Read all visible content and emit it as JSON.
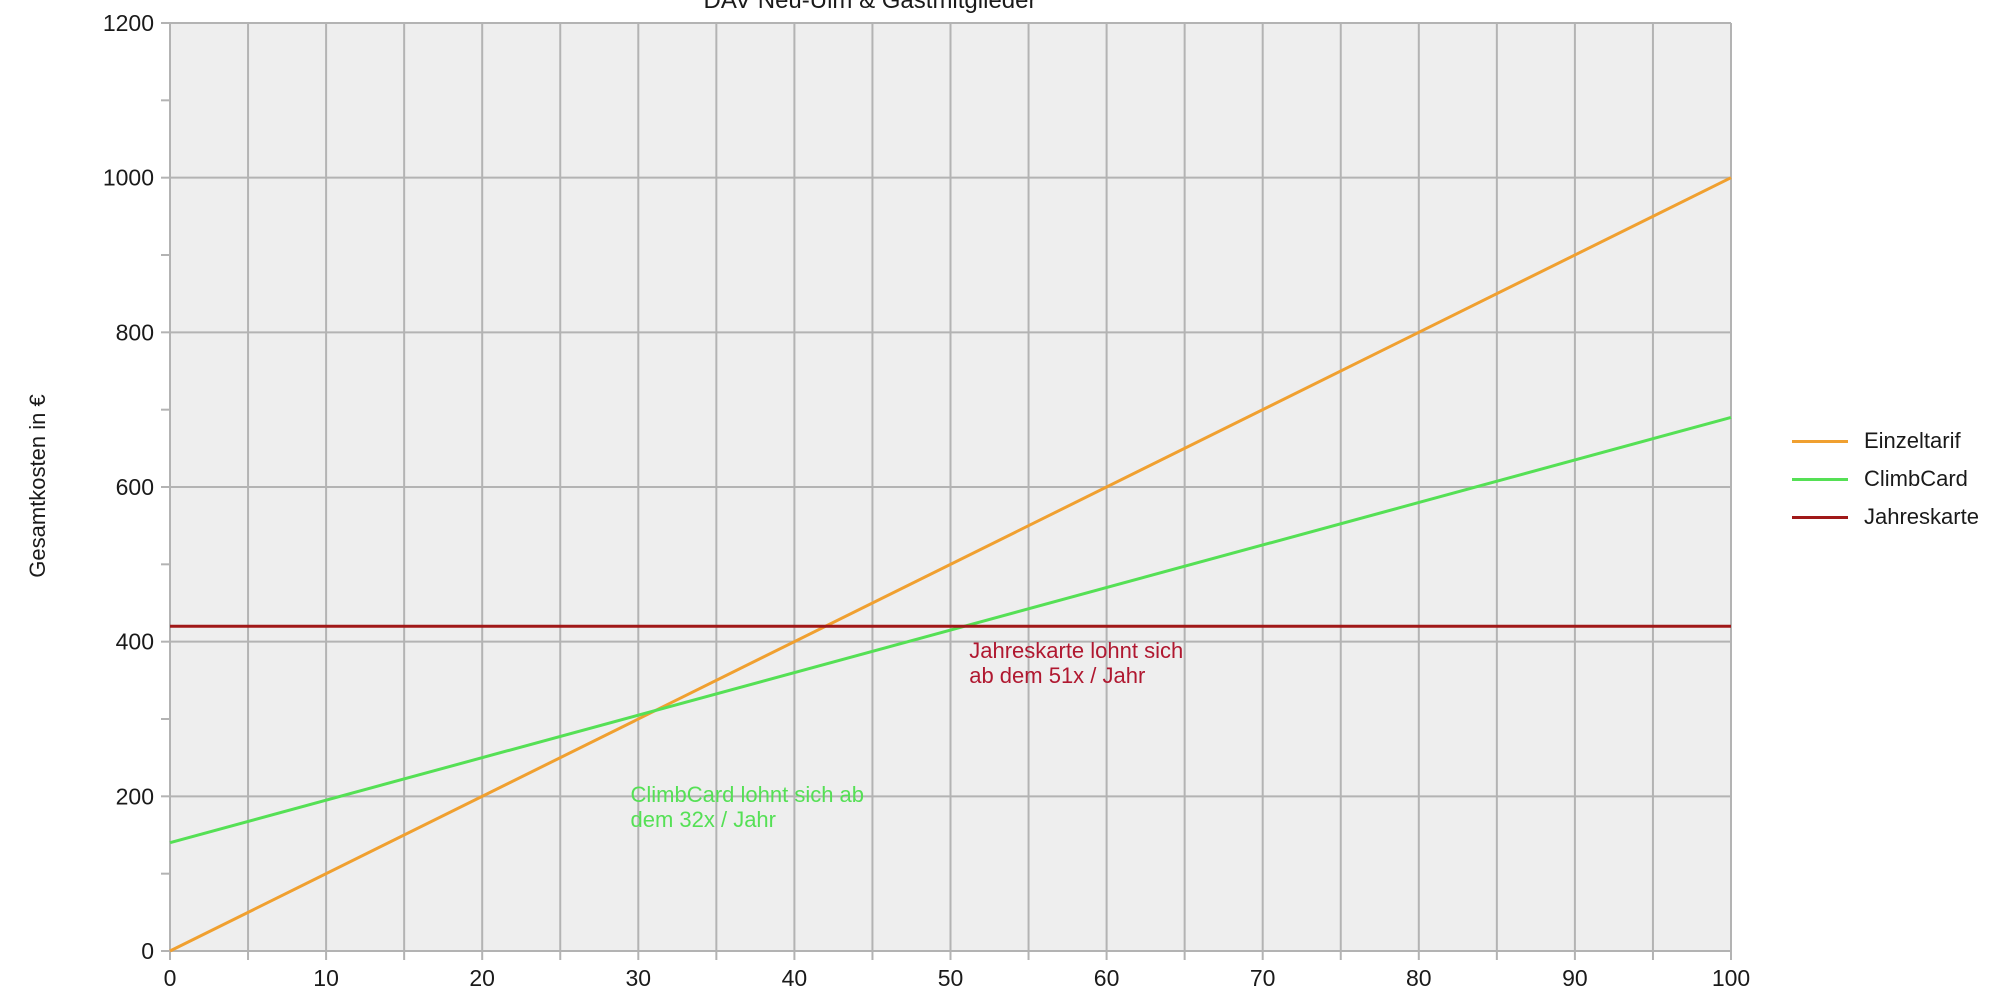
{
  "chart_data": {
    "type": "line",
    "title": "DAV Neu-Ulm & Gastmitglieder",
    "xlabel": "",
    "ylabel": "Gesamtkosten in €",
    "xlim": [
      0,
      100
    ],
    "ylim": [
      0,
      1200
    ],
    "x_ticks": [
      0,
      10,
      20,
      30,
      40,
      50,
      60,
      70,
      80,
      90,
      100
    ],
    "y_ticks": [
      0,
      200,
      400,
      600,
      800,
      1000,
      1200
    ],
    "x_minor_step": 5,
    "y_minor_step": 100,
    "grid": true,
    "legend_position": "right",
    "series": [
      {
        "name": "Einzeltarif",
        "color": "#f0a030",
        "x": [
          0,
          100
        ],
        "y": [
          0,
          1000
        ]
      },
      {
        "name": "ClimbCard",
        "color": "#55e055",
        "x": [
          0,
          100
        ],
        "y": [
          140,
          690
        ]
      },
      {
        "name": "Jahreskarte",
        "color": "#a01818",
        "x": [
          0,
          100
        ],
        "y": [
          420,
          420
        ]
      }
    ],
    "annotations": [
      {
        "id": "climbcard",
        "color": "#55e055",
        "x": 29.5,
        "y": 218,
        "lines": [
          "ClimbCard lohnt sich ab",
          "dem 32x / Jahr"
        ]
      },
      {
        "id": "jahreskarte",
        "color": "#b01830",
        "x": 51.2,
        "y": 405,
        "lines": [
          "Jahreskarte lohnt sich",
          "ab dem 51x / Jahr"
        ]
      }
    ]
  }
}
